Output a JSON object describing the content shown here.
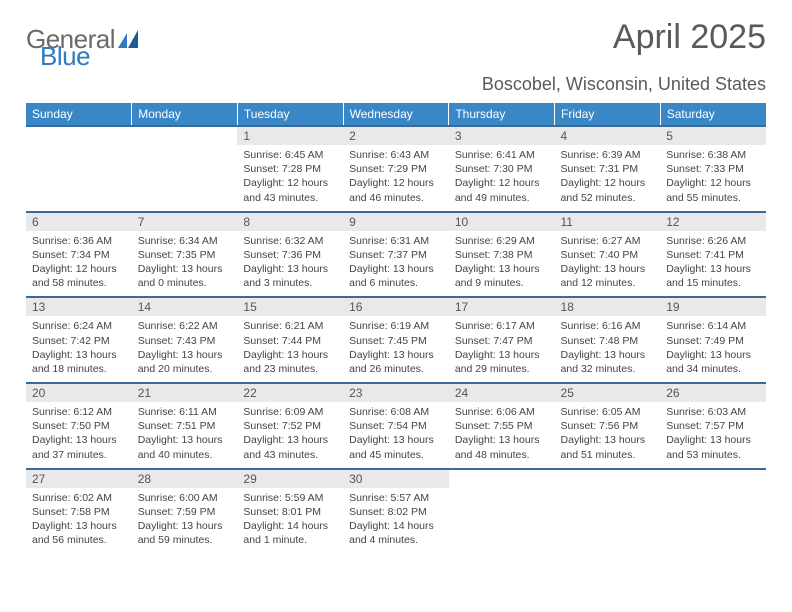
{
  "logo": {
    "text1": "General",
    "text2": "Blue"
  },
  "title": "April 2025",
  "location": "Boscobel, Wisconsin, United States",
  "colors": {
    "header_bg": "#3a87c8",
    "header_text": "#ffffff",
    "daynum_bg": "#e9e9e9",
    "row_border": "#3a6a99",
    "logo_gray": "#6a6a6a",
    "logo_blue": "#2f7bbf"
  },
  "weekdays": [
    "Sunday",
    "Monday",
    "Tuesday",
    "Wednesday",
    "Thursday",
    "Friday",
    "Saturday"
  ],
  "weeks": [
    {
      "nums": [
        "",
        "",
        "1",
        "2",
        "3",
        "4",
        "5"
      ],
      "cells": [
        {
          "blank": true
        },
        {
          "blank": true
        },
        {
          "sunrise": "Sunrise: 6:45 AM",
          "sunset": "Sunset: 7:28 PM",
          "daylight": "Daylight: 12 hours and 43 minutes."
        },
        {
          "sunrise": "Sunrise: 6:43 AM",
          "sunset": "Sunset: 7:29 PM",
          "daylight": "Daylight: 12 hours and 46 minutes."
        },
        {
          "sunrise": "Sunrise: 6:41 AM",
          "sunset": "Sunset: 7:30 PM",
          "daylight": "Daylight: 12 hours and 49 minutes."
        },
        {
          "sunrise": "Sunrise: 6:39 AM",
          "sunset": "Sunset: 7:31 PM",
          "daylight": "Daylight: 12 hours and 52 minutes."
        },
        {
          "sunrise": "Sunrise: 6:38 AM",
          "sunset": "Sunset: 7:33 PM",
          "daylight": "Daylight: 12 hours and 55 minutes."
        }
      ]
    },
    {
      "nums": [
        "6",
        "7",
        "8",
        "9",
        "10",
        "11",
        "12"
      ],
      "cells": [
        {
          "sunrise": "Sunrise: 6:36 AM",
          "sunset": "Sunset: 7:34 PM",
          "daylight": "Daylight: 12 hours and 58 minutes."
        },
        {
          "sunrise": "Sunrise: 6:34 AM",
          "sunset": "Sunset: 7:35 PM",
          "daylight": "Daylight: 13 hours and 0 minutes."
        },
        {
          "sunrise": "Sunrise: 6:32 AM",
          "sunset": "Sunset: 7:36 PM",
          "daylight": "Daylight: 13 hours and 3 minutes."
        },
        {
          "sunrise": "Sunrise: 6:31 AM",
          "sunset": "Sunset: 7:37 PM",
          "daylight": "Daylight: 13 hours and 6 minutes."
        },
        {
          "sunrise": "Sunrise: 6:29 AM",
          "sunset": "Sunset: 7:38 PM",
          "daylight": "Daylight: 13 hours and 9 minutes."
        },
        {
          "sunrise": "Sunrise: 6:27 AM",
          "sunset": "Sunset: 7:40 PM",
          "daylight": "Daylight: 13 hours and 12 minutes."
        },
        {
          "sunrise": "Sunrise: 6:26 AM",
          "sunset": "Sunset: 7:41 PM",
          "daylight": "Daylight: 13 hours and 15 minutes."
        }
      ]
    },
    {
      "nums": [
        "13",
        "14",
        "15",
        "16",
        "17",
        "18",
        "19"
      ],
      "cells": [
        {
          "sunrise": "Sunrise: 6:24 AM",
          "sunset": "Sunset: 7:42 PM",
          "daylight": "Daylight: 13 hours and 18 minutes."
        },
        {
          "sunrise": "Sunrise: 6:22 AM",
          "sunset": "Sunset: 7:43 PM",
          "daylight": "Daylight: 13 hours and 20 minutes."
        },
        {
          "sunrise": "Sunrise: 6:21 AM",
          "sunset": "Sunset: 7:44 PM",
          "daylight": "Daylight: 13 hours and 23 minutes."
        },
        {
          "sunrise": "Sunrise: 6:19 AM",
          "sunset": "Sunset: 7:45 PM",
          "daylight": "Daylight: 13 hours and 26 minutes."
        },
        {
          "sunrise": "Sunrise: 6:17 AM",
          "sunset": "Sunset: 7:47 PM",
          "daylight": "Daylight: 13 hours and 29 minutes."
        },
        {
          "sunrise": "Sunrise: 6:16 AM",
          "sunset": "Sunset: 7:48 PM",
          "daylight": "Daylight: 13 hours and 32 minutes."
        },
        {
          "sunrise": "Sunrise: 6:14 AM",
          "sunset": "Sunset: 7:49 PM",
          "daylight": "Daylight: 13 hours and 34 minutes."
        }
      ]
    },
    {
      "nums": [
        "20",
        "21",
        "22",
        "23",
        "24",
        "25",
        "26"
      ],
      "cells": [
        {
          "sunrise": "Sunrise: 6:12 AM",
          "sunset": "Sunset: 7:50 PM",
          "daylight": "Daylight: 13 hours and 37 minutes."
        },
        {
          "sunrise": "Sunrise: 6:11 AM",
          "sunset": "Sunset: 7:51 PM",
          "daylight": "Daylight: 13 hours and 40 minutes."
        },
        {
          "sunrise": "Sunrise: 6:09 AM",
          "sunset": "Sunset: 7:52 PM",
          "daylight": "Daylight: 13 hours and 43 minutes."
        },
        {
          "sunrise": "Sunrise: 6:08 AM",
          "sunset": "Sunset: 7:54 PM",
          "daylight": "Daylight: 13 hours and 45 minutes."
        },
        {
          "sunrise": "Sunrise: 6:06 AM",
          "sunset": "Sunset: 7:55 PM",
          "daylight": "Daylight: 13 hours and 48 minutes."
        },
        {
          "sunrise": "Sunrise: 6:05 AM",
          "sunset": "Sunset: 7:56 PM",
          "daylight": "Daylight: 13 hours and 51 minutes."
        },
        {
          "sunrise": "Sunrise: 6:03 AM",
          "sunset": "Sunset: 7:57 PM",
          "daylight": "Daylight: 13 hours and 53 minutes."
        }
      ]
    },
    {
      "nums": [
        "27",
        "28",
        "29",
        "30",
        "",
        "",
        ""
      ],
      "cells": [
        {
          "sunrise": "Sunrise: 6:02 AM",
          "sunset": "Sunset: 7:58 PM",
          "daylight": "Daylight: 13 hours and 56 minutes."
        },
        {
          "sunrise": "Sunrise: 6:00 AM",
          "sunset": "Sunset: 7:59 PM",
          "daylight": "Daylight: 13 hours and 59 minutes."
        },
        {
          "sunrise": "Sunrise: 5:59 AM",
          "sunset": "Sunset: 8:01 PM",
          "daylight": "Daylight: 14 hours and 1 minute."
        },
        {
          "sunrise": "Sunrise: 5:57 AM",
          "sunset": "Sunset: 8:02 PM",
          "daylight": "Daylight: 14 hours and 4 minutes."
        },
        {
          "blank": true
        },
        {
          "blank": true
        },
        {
          "blank": true
        }
      ]
    }
  ]
}
